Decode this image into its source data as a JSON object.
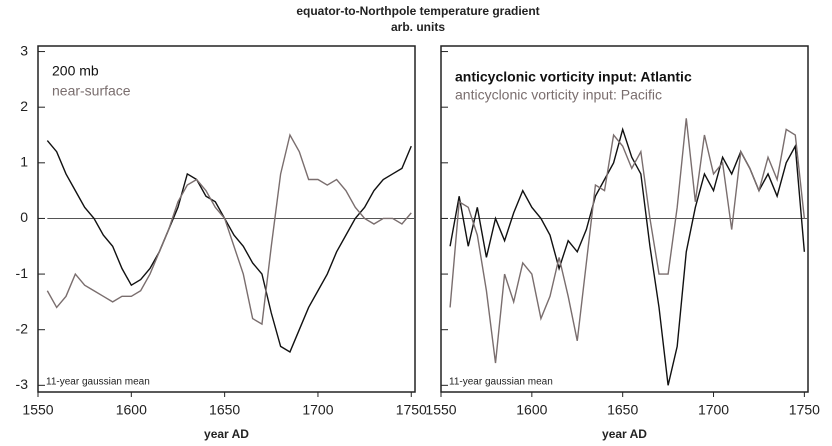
{
  "chart_data": [
    {
      "type": "line",
      "title": "equator-to-Northpole temperature gradient",
      "ylabel": "arb. units",
      "xlabel": "year AD",
      "annotation": "11-year gaussian mean",
      "x": [
        1555,
        1560,
        1565,
        1570,
        1575,
        1580,
        1585,
        1590,
        1595,
        1600,
        1605,
        1610,
        1615,
        1620,
        1625,
        1630,
        1635,
        1640,
        1645,
        1650,
        1655,
        1660,
        1665,
        1670,
        1675,
        1680,
        1685,
        1690,
        1695,
        1700,
        1705,
        1710,
        1715,
        1720,
        1725,
        1730,
        1735,
        1740,
        1745,
        1750
      ],
      "series": [
        {
          "name": "200 mb",
          "color": "#111111",
          "values": [
            1.4,
            1.2,
            0.8,
            0.5,
            0.2,
            0.0,
            -0.3,
            -0.5,
            -0.9,
            -1.2,
            -1.1,
            -0.9,
            -0.6,
            -0.2,
            0.2,
            0.8,
            0.7,
            0.4,
            0.3,
            0.0,
            -0.3,
            -0.5,
            -0.8,
            -1.0,
            -1.7,
            -2.3,
            -2.4,
            -2.0,
            -1.6,
            -1.3,
            -1.0,
            -0.6,
            -0.3,
            0.0,
            0.2,
            0.5,
            0.7,
            0.8,
            0.9,
            1.3
          ]
        },
        {
          "name": "near-surface",
          "color": "#7a6e6e",
          "values": [
            -1.3,
            -1.6,
            -1.4,
            -1.0,
            -1.2,
            -1.3,
            -1.4,
            -1.5,
            -1.4,
            -1.4,
            -1.3,
            -1.0,
            -0.6,
            -0.2,
            0.3,
            0.6,
            0.7,
            0.5,
            0.2,
            0.0,
            -0.5,
            -1.0,
            -1.8,
            -1.9,
            -0.5,
            0.8,
            1.5,
            1.2,
            0.7,
            0.7,
            0.6,
            0.7,
            0.5,
            0.2,
            0.0,
            -0.1,
            0.0,
            0.0,
            -0.1,
            0.1
          ]
        }
      ],
      "xlim": [
        1550,
        1752
      ],
      "xticks": [
        1550,
        1600,
        1650,
        1700,
        1750
      ],
      "ylim": [
        -3.12,
        3.1
      ],
      "yticks": [
        -3,
        -2,
        -1,
        0,
        1,
        2,
        3
      ],
      "ytick_labels": true
    },
    {
      "type": "line",
      "xlabel": "year AD",
      "annotation": "11-year gaussian mean",
      "x": [
        1555,
        1560,
        1565,
        1570,
        1575,
        1580,
        1585,
        1590,
        1595,
        1600,
        1605,
        1610,
        1615,
        1620,
        1625,
        1630,
        1635,
        1640,
        1645,
        1650,
        1655,
        1660,
        1665,
        1670,
        1675,
        1680,
        1685,
        1690,
        1695,
        1700,
        1705,
        1710,
        1715,
        1720,
        1725,
        1730,
        1735,
        1740,
        1745,
        1750
      ],
      "series": [
        {
          "name": "anticyclonic vorticity input: Atlantic",
          "color": "#111111",
          "bold": true,
          "values": [
            -0.5,
            0.4,
            -0.5,
            0.2,
            -0.7,
            0.0,
            -0.4,
            0.1,
            0.5,
            0.2,
            0.0,
            -0.3,
            -0.9,
            -0.4,
            -0.6,
            -0.2,
            0.4,
            0.7,
            1.0,
            1.6,
            1.1,
            0.8,
            -0.5,
            -1.6,
            -3.0,
            -2.3,
            -0.6,
            0.2,
            0.8,
            0.5,
            1.1,
            0.8,
            1.2,
            0.9,
            0.5,
            0.8,
            0.4,
            1.0,
            1.3,
            -0.6
          ]
        },
        {
          "name": "anticyclonic vorticity input: Pacific",
          "color": "#7a6e6e",
          "bold": false,
          "values": [
            -1.6,
            0.3,
            0.2,
            -0.3,
            -1.3,
            -2.6,
            -1.0,
            -1.5,
            -0.8,
            -1.0,
            -1.8,
            -1.4,
            -0.7,
            -1.4,
            -2.2,
            -0.8,
            0.6,
            0.5,
            1.5,
            1.3,
            0.9,
            1.2,
            0.0,
            -1.0,
            -1.0,
            0.2,
            1.8,
            0.3,
            1.5,
            0.8,
            1.0,
            -0.2,
            1.2,
            0.9,
            0.5,
            1.1,
            0.7,
            1.6,
            1.5,
            0.0
          ]
        }
      ],
      "xlim": [
        1550,
        1752
      ],
      "xticks": [
        1550,
        1600,
        1650,
        1700,
        1750
      ],
      "ylim": [
        -3.12,
        3.1
      ],
      "yticks": [
        -3,
        -2,
        -1,
        0,
        1,
        2,
        3
      ],
      "ytick_labels": false
    }
  ]
}
